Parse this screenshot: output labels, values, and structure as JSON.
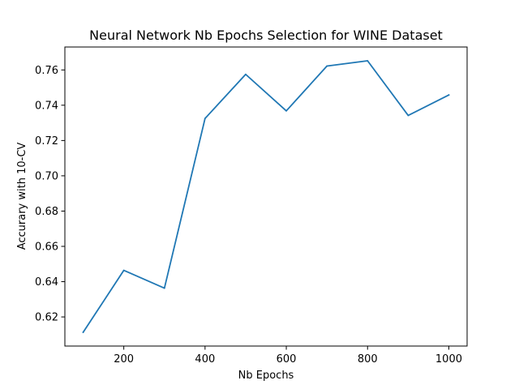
{
  "chart_data": {
    "type": "line",
    "title": "Neural Network Nb Epochs Selection for WINE Dataset",
    "xlabel": "Nb Epochs",
    "ylabel": "Accurary with 10-CV",
    "xlim": [
      55,
      1045
    ],
    "ylim": [
      0.6035,
      0.773
    ],
    "xticks": [
      200,
      400,
      600,
      800,
      1000
    ],
    "xtick_labels": [
      "200",
      "400",
      "600",
      "800",
      "1000"
    ],
    "yticks": [
      0.62,
      0.64,
      0.66,
      0.68,
      0.7,
      0.72,
      0.74,
      0.76
    ],
    "ytick_labels": [
      "0.62",
      "0.64",
      "0.66",
      "0.68",
      "0.70",
      "0.72",
      "0.74",
      "0.76"
    ],
    "grid": false,
    "series": [
      {
        "color": "#1f77b4",
        "x": [
          100,
          200,
          300,
          400,
          500,
          600,
          700,
          800,
          900,
          1000
        ],
        "values": [
          0.6113,
          0.6464,
          0.6363,
          0.7325,
          0.7575,
          0.7368,
          0.7622,
          0.7652,
          0.7342,
          0.7458
        ]
      }
    ]
  }
}
